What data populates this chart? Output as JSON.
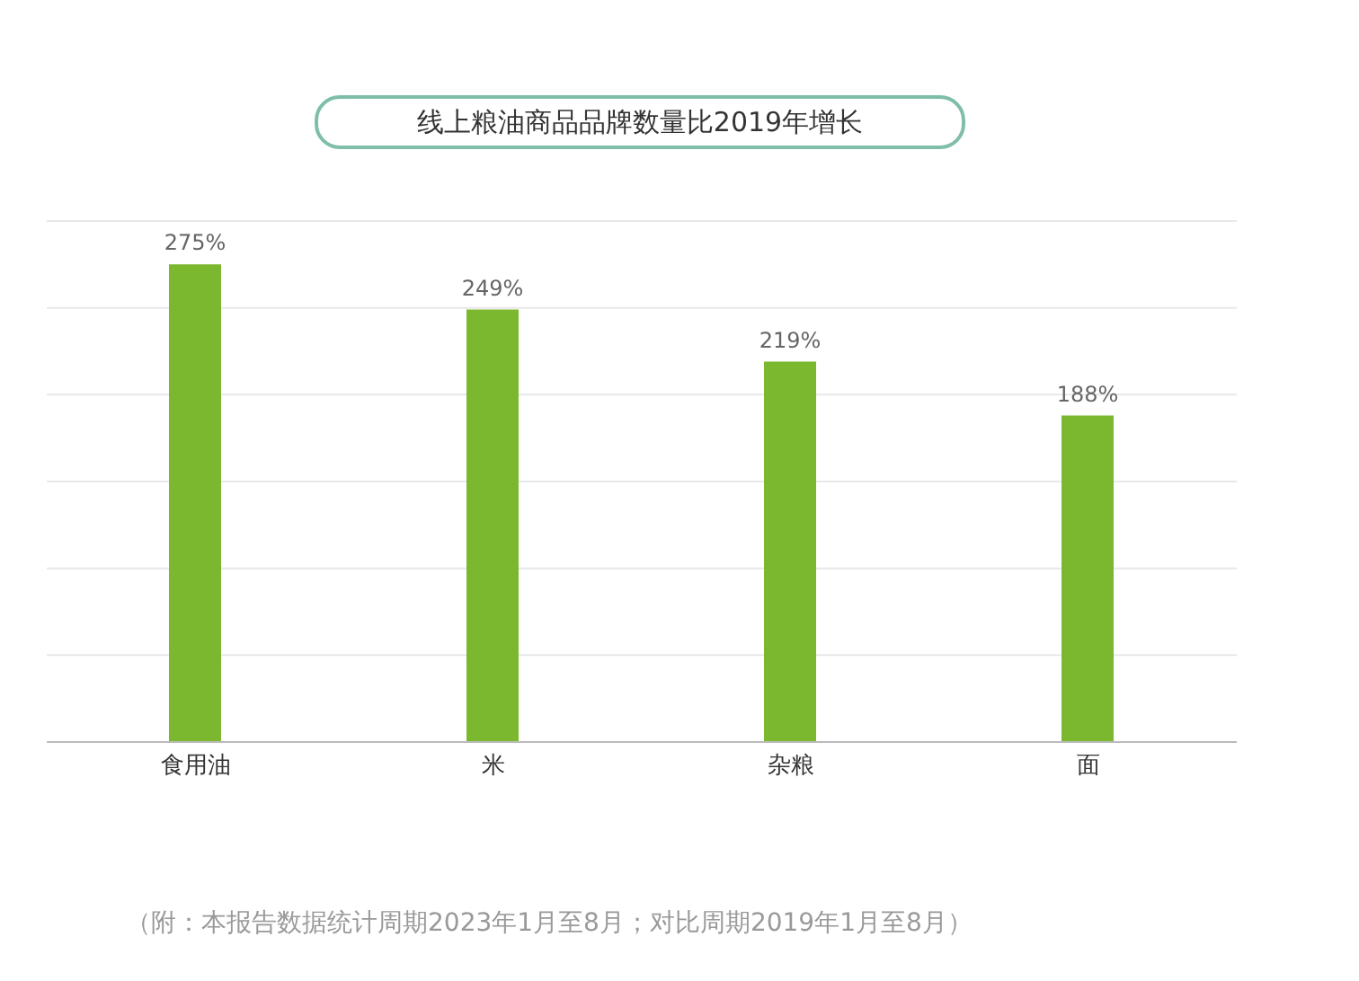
{
  "chart_data": {
    "type": "bar",
    "title": "线上粮油商品品牌数量比2019年增长",
    "categories": [
      "食用油",
      "米",
      "杂粮",
      "面"
    ],
    "values": [
      275,
      249,
      219,
      188
    ],
    "color": "#7cb82f",
    "value_labels": [
      "275%",
      "249%",
      "219%",
      "188%"
    ],
    "ylim": [
      0,
      300
    ],
    "yticks": [
      {
        "value": 0,
        "label": null
      },
      {
        "value": 50,
        "label": null
      },
      {
        "value": 100,
        "label": null
      },
      {
        "value": 150,
        "label": null
      },
      {
        "value": 200,
        "label": null
      },
      {
        "value": 250,
        "label": null
      },
      {
        "value": 300,
        "label": null
      }
    ],
    "grid": "y",
    "tick_labels": "x",
    "annotations": [
      "（附：本报告数据统计周期2023年1月至8月；对比周期2019年1月至8月）"
    ]
  }
}
